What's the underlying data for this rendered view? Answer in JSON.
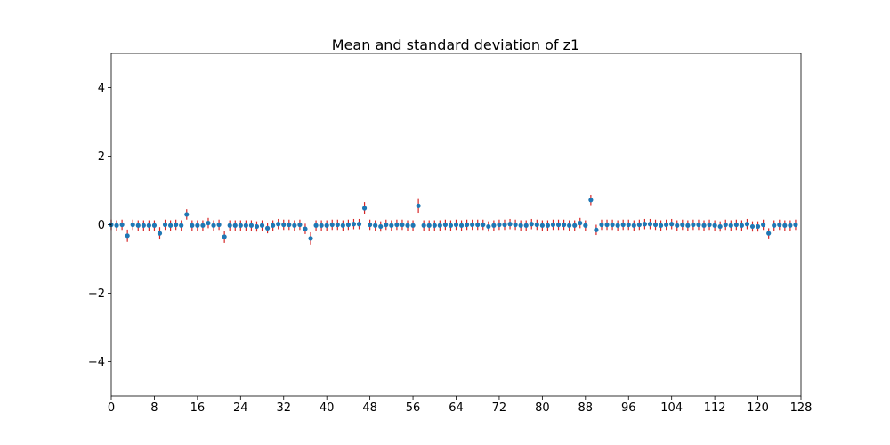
{
  "chart_data": {
    "type": "scatter",
    "title": "Mean and standard deviation of z1",
    "xlabel": "",
    "ylabel": "",
    "xlim": [
      0,
      128
    ],
    "ylim": [
      -5,
      5
    ],
    "xticks": [
      0,
      8,
      16,
      24,
      32,
      40,
      48,
      56,
      64,
      72,
      80,
      88,
      96,
      104,
      112,
      120,
      128
    ],
    "yticks": [
      -4,
      -2,
      0,
      2,
      4
    ],
    "ytick_labels": [
      "−4",
      "−2",
      "0",
      "2",
      "4"
    ],
    "grid": false,
    "marker_color": "#1f77b4",
    "errorbar_color": "#d62728",
    "series": [
      {
        "x": [
          0,
          1,
          2,
          3,
          4,
          5,
          6,
          7,
          8,
          9,
          10,
          11,
          12,
          13,
          14,
          15,
          16,
          17,
          18,
          19,
          20,
          21,
          22,
          23,
          24,
          25,
          26,
          27,
          28,
          29,
          30,
          31,
          32,
          33,
          34,
          35,
          36,
          37,
          38,
          39,
          40,
          41,
          42,
          43,
          44,
          45,
          46,
          47,
          48,
          49,
          50,
          51,
          52,
          53,
          54,
          55,
          56,
          57,
          58,
          59,
          60,
          61,
          62,
          63,
          64,
          65,
          66,
          67,
          68,
          69,
          70,
          71,
          72,
          73,
          74,
          75,
          76,
          77,
          78,
          79,
          80,
          81,
          82,
          83,
          84,
          85,
          86,
          87,
          88,
          89,
          90,
          91,
          92,
          93,
          94,
          95,
          96,
          97,
          98,
          99,
          100,
          101,
          102,
          103,
          104,
          105,
          106,
          107,
          108,
          109,
          110,
          111,
          112,
          113,
          114,
          115,
          116,
          117,
          118,
          119,
          120,
          121,
          122,
          123,
          124,
          125,
          126,
          127
        ],
        "mean": [
          0.0,
          -0.02,
          0.0,
          -0.32,
          0.0,
          -0.02,
          -0.02,
          -0.02,
          -0.02,
          -0.25,
          0.0,
          -0.02,
          0.0,
          -0.02,
          0.3,
          -0.02,
          -0.02,
          -0.02,
          0.05,
          -0.02,
          0.0,
          -0.35,
          -0.02,
          -0.02,
          -0.02,
          -0.02,
          -0.02,
          -0.05,
          -0.02,
          -0.1,
          -0.02,
          0.02,
          0.0,
          0.0,
          -0.02,
          0.0,
          -0.12,
          -0.4,
          -0.02,
          -0.02,
          -0.02,
          0.0,
          0.0,
          -0.02,
          0.0,
          0.02,
          0.02,
          0.48,
          0.0,
          -0.02,
          -0.05,
          0.0,
          -0.02,
          0.0,
          0.0,
          -0.02,
          -0.02,
          0.55,
          -0.02,
          -0.02,
          -0.02,
          -0.02,
          0.0,
          -0.02,
          0.0,
          -0.02,
          0.0,
          0.0,
          0.0,
          0.0,
          -0.05,
          -0.02,
          0.0,
          0.0,
          0.02,
          0.0,
          -0.02,
          -0.02,
          0.02,
          0.0,
          -0.02,
          -0.02,
          0.0,
          0.0,
          0.0,
          -0.02,
          -0.02,
          0.05,
          -0.02,
          0.72,
          -0.15,
          0.0,
          0.0,
          0.0,
          -0.02,
          0.0,
          0.0,
          -0.02,
          0.0,
          0.02,
          0.02,
          0.0,
          -0.02,
          0.0,
          0.02,
          -0.02,
          0.0,
          -0.02,
          0.0,
          0.0,
          -0.02,
          0.0,
          -0.02,
          -0.05,
          0.0,
          -0.02,
          0.0,
          -0.02,
          0.02,
          -0.05,
          -0.05,
          0.0,
          -0.25,
          -0.02,
          0.0,
          -0.02,
          -0.02,
          0.0
        ],
        "std": [
          0.15,
          0.15,
          0.15,
          0.18,
          0.15,
          0.15,
          0.15,
          0.15,
          0.15,
          0.18,
          0.15,
          0.15,
          0.15,
          0.15,
          0.15,
          0.15,
          0.15,
          0.15,
          0.15,
          0.15,
          0.15,
          0.18,
          0.15,
          0.15,
          0.15,
          0.15,
          0.15,
          0.15,
          0.15,
          0.15,
          0.15,
          0.15,
          0.15,
          0.15,
          0.15,
          0.15,
          0.15,
          0.18,
          0.15,
          0.15,
          0.15,
          0.15,
          0.15,
          0.15,
          0.15,
          0.15,
          0.15,
          0.18,
          0.15,
          0.15,
          0.15,
          0.15,
          0.15,
          0.15,
          0.15,
          0.15,
          0.15,
          0.2,
          0.15,
          0.15,
          0.15,
          0.15,
          0.15,
          0.15,
          0.15,
          0.15,
          0.15,
          0.15,
          0.15,
          0.15,
          0.15,
          0.15,
          0.15,
          0.15,
          0.15,
          0.15,
          0.15,
          0.15,
          0.15,
          0.15,
          0.15,
          0.15,
          0.15,
          0.15,
          0.15,
          0.15,
          0.15,
          0.15,
          0.15,
          0.15,
          0.15,
          0.15,
          0.15,
          0.15,
          0.15,
          0.15,
          0.15,
          0.15,
          0.15,
          0.15,
          0.15,
          0.15,
          0.15,
          0.15,
          0.15,
          0.15,
          0.15,
          0.15,
          0.15,
          0.15,
          0.15,
          0.15,
          0.15,
          0.15,
          0.15,
          0.15,
          0.15,
          0.15,
          0.15,
          0.15,
          0.15,
          0.15,
          0.15,
          0.15,
          0.15,
          0.15,
          0.15,
          0.15
        ]
      }
    ]
  }
}
